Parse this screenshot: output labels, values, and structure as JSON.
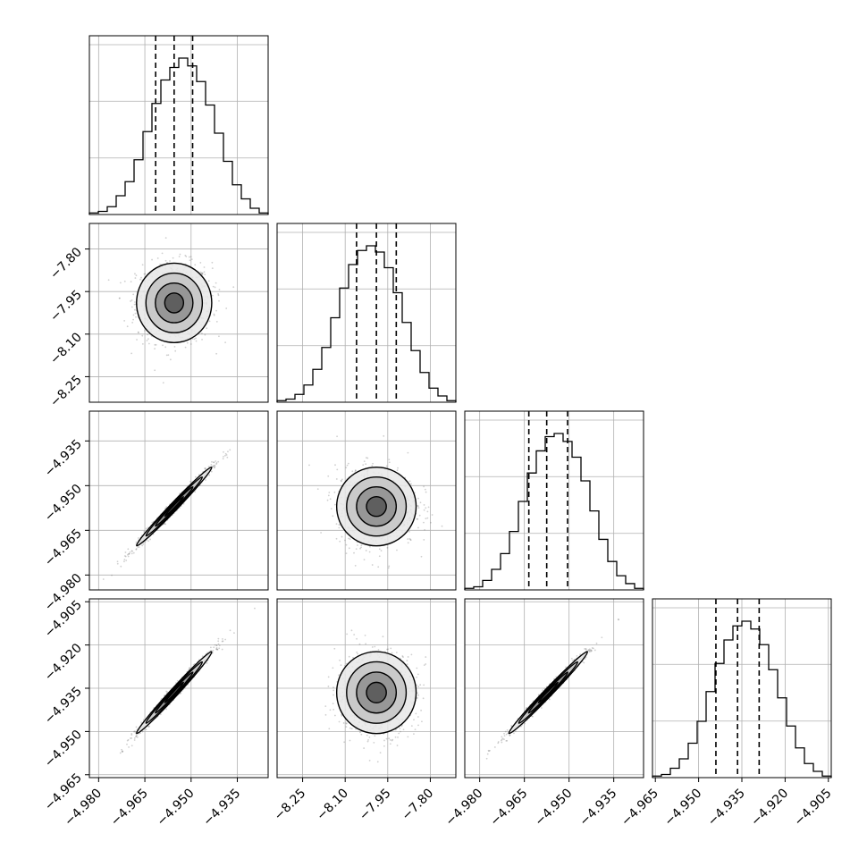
{
  "chart_data": {
    "type": "corner",
    "title": "",
    "grid": true,
    "parameters": [
      {
        "name": "",
        "range": [
          -4.983,
          -4.925
        ],
        "ticks": [
          -4.98,
          -4.965,
          -4.95,
          -4.935
        ],
        "tick_labels": [
          "−4.980",
          "−4.965",
          "−4.950",
          "−4.935"
        ],
        "quantiles": [
          -4.9615,
          -4.9555,
          -4.9495
        ],
        "mean": -4.9555,
        "sd": 0.0061
      },
      {
        "name": "",
        "range": [
          -8.34,
          -7.71
        ],
        "ticks": [
          -8.25,
          -8.1,
          -7.95,
          -7.8
        ],
        "tick_labels": [
          "−8.25",
          "−8.10",
          "−7.95",
          "−7.80"
        ],
        "quantiles": [
          -8.06,
          -7.99,
          -7.92
        ],
        "mean": -7.99,
        "sd": 0.07
      },
      {
        "name": "",
        "range": [
          -4.985,
          -4.925
        ],
        "ticks": [
          -4.98,
          -4.965,
          -4.95,
          -4.935
        ],
        "tick_labels": [
          "−4.980",
          "−4.965",
          "−4.950",
          "−4.935"
        ],
        "quantiles": [
          -4.9635,
          -4.9575,
          -4.9505
        ],
        "mean": -4.957,
        "sd": 0.0066
      },
      {
        "name": "",
        "range": [
          -4.966,
          -4.904
        ],
        "ticks": [
          -4.965,
          -4.95,
          -4.935,
          -4.92,
          -4.905
        ],
        "tick_labels": [
          "−4.965",
          "−4.950",
          "−4.935",
          "−4.920",
          "−4.905"
        ],
        "quantiles": [
          -4.944,
          -4.9365,
          -4.929
        ],
        "mean": -4.9365,
        "sd": 0.0071
      }
    ],
    "histograms": [
      {
        "param": 0,
        "bins": 20,
        "counts": [
          1,
          2,
          5,
          12,
          21,
          35,
          53,
          71,
          86,
          94,
          100,
          95,
          85,
          70,
          52,
          34,
          19,
          10,
          4,
          1
        ]
      },
      {
        "param": 1,
        "bins": 20,
        "counts": [
          1,
          2,
          5,
          11,
          21,
          35,
          54,
          73,
          88,
          97,
          100,
          96,
          86,
          70,
          51,
          33,
          19,
          9,
          4,
          1
        ]
      },
      {
        "param": 2,
        "bins": 20,
        "counts": [
          1,
          2,
          6,
          13,
          23,
          37,
          56,
          74,
          88,
          97,
          99,
          94,
          84,
          69,
          50,
          32,
          18,
          9,
          4,
          1
        ]
      },
      {
        "param": 3,
        "bins": 20,
        "counts": [
          1,
          2,
          6,
          12,
          22,
          36,
          55,
          73,
          88,
          97,
          100,
          95,
          85,
          69,
          51,
          33,
          19,
          9,
          4,
          1
        ]
      }
    ],
    "pairs": [
      {
        "x_param": 0,
        "y_param": 1,
        "correlation": 0.0
      },
      {
        "x_param": 0,
        "y_param": 2,
        "correlation": 0.99
      },
      {
        "x_param": 1,
        "y_param": 2,
        "correlation": 0.0
      },
      {
        "x_param": 0,
        "y_param": 3,
        "correlation": 0.99
      },
      {
        "x_param": 1,
        "y_param": 3,
        "correlation": 0.0
      },
      {
        "x_param": 2,
        "y_param": 3,
        "correlation": 0.99
      }
    ],
    "contour_levels_sigma": [
      0.5,
      1.0,
      1.5,
      2.0
    ]
  }
}
